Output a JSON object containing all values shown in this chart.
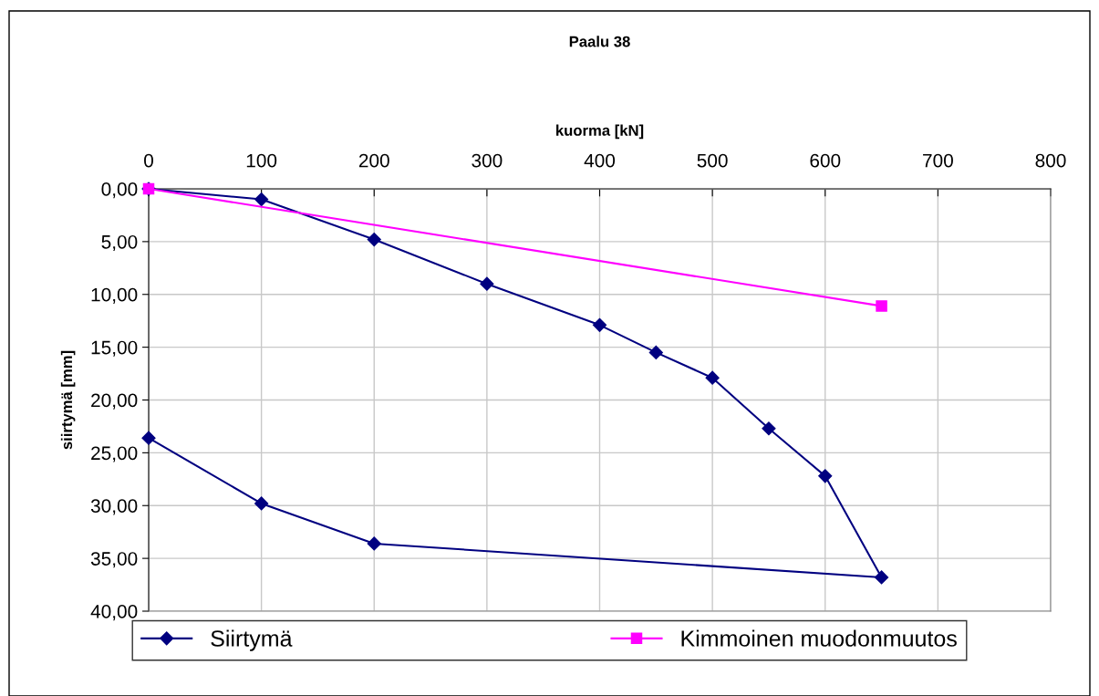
{
  "chart_data": {
    "type": "line",
    "title": "Paalu 38",
    "xlabel": "kuorma [kN]",
    "ylabel": "siirtymä [mm]",
    "xlim": [
      0,
      800
    ],
    "xticks": [
      0,
      100,
      200,
      300,
      400,
      500,
      600,
      700,
      800
    ],
    "ylim": [
      40,
      0
    ],
    "yticks": [
      {
        "value": 0,
        "label": "0,00"
      },
      {
        "value": 5,
        "label": "5,00"
      },
      {
        "value": 10,
        "label": "10,00"
      },
      {
        "value": 15,
        "label": "15,00"
      },
      {
        "value": 20,
        "label": "20,00"
      },
      {
        "value": 25,
        "label": "25,00"
      },
      {
        "value": 30,
        "label": "30,00"
      },
      {
        "value": 35,
        "label": "35,00"
      },
      {
        "value": 40,
        "label": "40,00"
      }
    ],
    "grid": true,
    "legend": "bottom",
    "series": [
      {
        "name": "Siirtymä",
        "color": "#000080",
        "marker": "diamond",
        "x": [
          0,
          100,
          200,
          300,
          400,
          450,
          500,
          550,
          600,
          650,
          200,
          100,
          0
        ],
        "values": [
          0,
          1.0,
          4.8,
          9.0,
          12.9,
          15.5,
          17.9,
          22.7,
          27.2,
          36.8,
          33.6,
          29.8,
          23.6
        ]
      },
      {
        "name": "Kimmoinen muodonmuutos",
        "color": "#ff00ff",
        "marker": "square",
        "x": [
          0,
          650
        ],
        "values": [
          0,
          11.1
        ]
      }
    ]
  }
}
